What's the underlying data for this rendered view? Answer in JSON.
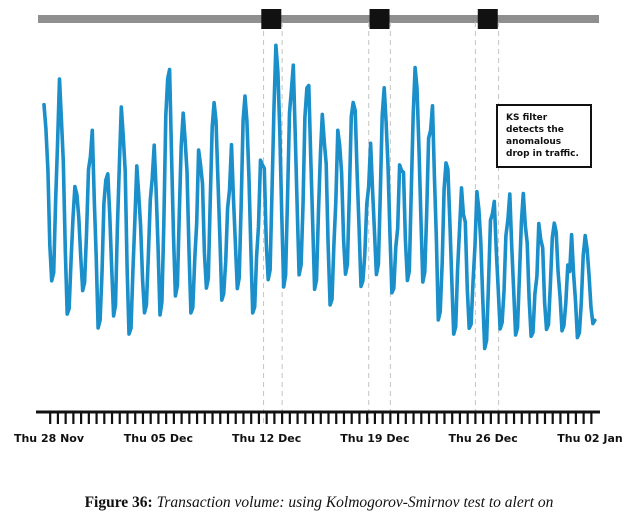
{
  "chart_data": {
    "type": "line",
    "title": "",
    "xlabel": "",
    "ylabel": "",
    "x_tick_labels": [
      "Thu 28 Nov",
      "Thu 05 Dec",
      "Thu 12 Dec",
      "Thu 19 Dec",
      "Thu 26 Dec",
      "Thu 02 Jan"
    ],
    "x_tick_days": [
      0,
      7,
      14,
      21,
      28,
      35
    ],
    "x_range_days": [
      -0.4,
      35.3
    ],
    "y_range": [
      0,
      100
    ],
    "series": [
      {
        "name": "",
        "color": "#1a8fc9",
        "daily_peaks": [
          88,
          58,
          74,
          60,
          84,
          60,
          65,
          92,
          84,
          62,
          88,
          60,
          88,
          62,
          96,
          94,
          88,
          82,
          68,
          90,
          60,
          90,
          60,
          92,
          84,
          66,
          60,
          53,
          58,
          52,
          58,
          46,
          50,
          42,
          44,
          42,
          52
        ],
        "daily_troughs": [
          30,
          22,
          28,
          18,
          20,
          16,
          22,
          20,
          26,
          22,
          28,
          26,
          28,
          22,
          30,
          28,
          32,
          28,
          24,
          32,
          30,
          32,
          28,
          30,
          30,
          20,
          16,
          18,
          12,
          18,
          16,
          16,
          18,
          18,
          16,
          20,
          20
        ],
        "y_units": "relative transaction volume (axis unlabeled)"
      }
    ],
    "alert_markers": [
      {
        "day": 14.3,
        "window_days": [
          13.8,
          15.0
        ]
      },
      {
        "day": 21.3,
        "window_days": [
          20.6,
          22.0
        ]
      },
      {
        "day": 28.3,
        "window_days": [
          27.5,
          29.0
        ]
      }
    ],
    "grid": false,
    "legend": "none"
  },
  "annotation": {
    "text": "KS filter detects the anomalous drop in traffic."
  },
  "caption": {
    "figure_label": "Figure 36:",
    "description": "Transaction volume: using Kolmogorov-Smirnov test to alert on"
  }
}
